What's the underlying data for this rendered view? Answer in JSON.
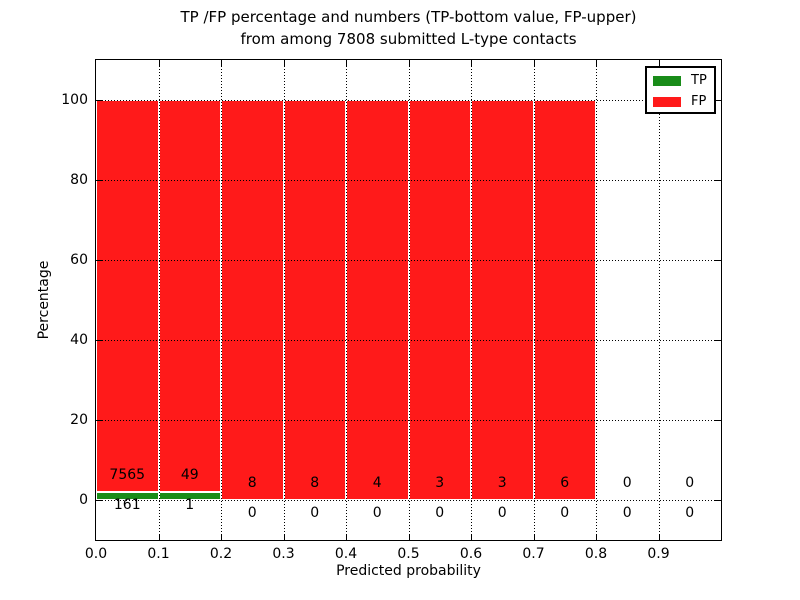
{
  "chart_data": {
    "type": "bar",
    "stacked": true,
    "title_line1": "TP /FP percentage and numbers (TP-bottom value, FP-upper)",
    "title_line2": "from among 7808 submitted L-type contacts",
    "xlabel": "Predicted probability",
    "ylabel": "Percentage",
    "total_contacts": 7808,
    "xlim": [
      0.0,
      1.0
    ],
    "ylim": [
      -10,
      110
    ],
    "bin_edges": [
      0.0,
      0.1,
      0.2,
      0.3,
      0.4,
      0.5,
      0.6,
      0.7,
      0.8,
      0.9,
      1.0
    ],
    "x_tick_labels": [
      "0.0",
      "0.1",
      "0.2",
      "0.3",
      "0.4",
      "0.5",
      "0.6",
      "0.7",
      "0.8",
      "0.9"
    ],
    "y_ticks": [
      0,
      20,
      40,
      60,
      80,
      100
    ],
    "y_tick_labels": [
      "0",
      "20",
      "40",
      "60",
      "80",
      "100"
    ],
    "grid": "dotted",
    "series": [
      {
        "name": "TP",
        "color": "#198c19",
        "counts": [
          161,
          1,
          0,
          0,
          0,
          0,
          0,
          0,
          0,
          0
        ],
        "percent": [
          2.08,
          2.0,
          0,
          0,
          0,
          0,
          0,
          0,
          0,
          0
        ]
      },
      {
        "name": "FP",
        "color": "#ff1a1a",
        "counts": [
          7565,
          49,
          8,
          8,
          4,
          3,
          3,
          6,
          0,
          0
        ],
        "percent": [
          97.92,
          98.0,
          100,
          100,
          100,
          100,
          100,
          100,
          0,
          0
        ]
      }
    ],
    "legend": {
      "position": "upper right",
      "entries": [
        {
          "label": "TP",
          "color": "#198c19"
        },
        {
          "label": "FP",
          "color": "#ff1a1a"
        }
      ]
    }
  }
}
